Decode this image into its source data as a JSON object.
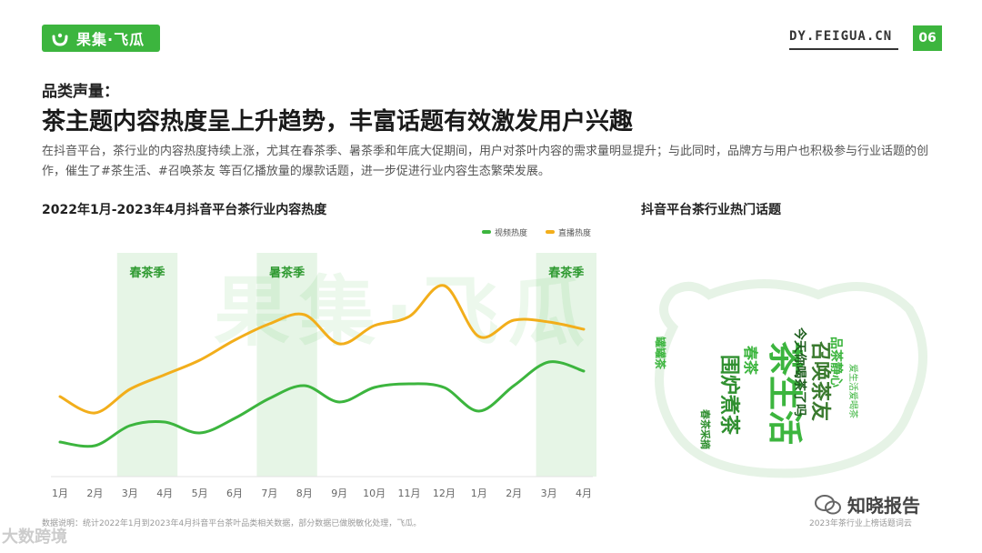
{
  "header": {
    "logo_text": "果集·飞瓜",
    "site_url": "DY.FEIGUA.CN",
    "page_number": "06"
  },
  "section_label": "品类声量：",
  "headline": "茶主题内容热度呈上升趋势，丰富话题有效激发用户兴趣",
  "description": "在抖音平台，茶行业的内容热度持续上涨，尤其在春茶季、暑茶季和年底大促期间，用户对茶叶内容的需求量明显提升；与此同时，品牌方与用户也积极参与行业话题的创作，催生了#茶生活、#召唤茶友 等百亿播放量的爆款话题，进一步促进行业内容生态繁荣发展。",
  "watermark_text": "果集·飞瓜",
  "chart_data": {
    "type": "line",
    "title": "2022年1月-2023年4月抖音平台茶行业内容热度",
    "categories": [
      "1月",
      "2月",
      "3月",
      "4月",
      "5月",
      "6月",
      "7月",
      "8月",
      "9月",
      "10月",
      "11月",
      "12月",
      "1月",
      "2月",
      "3月",
      "4月"
    ],
    "series": [
      {
        "name": "视频热度",
        "color": "#3cb53e",
        "values": [
          19,
          17,
          28,
          30,
          24,
          32,
          43,
          50,
          41,
          49,
          51,
          49,
          36,
          50,
          63,
          58
        ]
      },
      {
        "name": "直播热度",
        "color": "#f2ae1b",
        "values": [
          44,
          35,
          48,
          56,
          64,
          75,
          84,
          89,
          73,
          83,
          88,
          105,
          77,
          86,
          85,
          81
        ]
      }
    ],
    "ylim": [
      0,
      130
    ],
    "highlights": [
      {
        "label": "春茶季",
        "start_index": 2,
        "end_index": 3
      },
      {
        "label": "暑茶季",
        "start_index": 6,
        "end_index": 7
      },
      {
        "label": "春茶季",
        "start_index": 14,
        "end_index": 15
      }
    ],
    "legend_position": "top-right",
    "grid": false
  },
  "word_cloud": {
    "title": "抖音平台茶行业热门话题",
    "words": [
      {
        "text": "茶生活",
        "weight": 5
      },
      {
        "text": "召唤茶友",
        "weight": 4
      },
      {
        "text": "围炉煮茶",
        "weight": 4
      },
      {
        "text": "春茶",
        "weight": 3
      },
      {
        "text": "今天你喝茶了吗",
        "weight": 2
      },
      {
        "text": "品茶静心",
        "weight": 2
      },
      {
        "text": "爱生活爱喝茶",
        "weight": 1
      },
      {
        "text": "春茶采摘",
        "weight": 1
      },
      {
        "text": "罐罐茶",
        "weight": 1
      }
    ],
    "source": "2023年茶行业上榜话题词云"
  },
  "footnote": "数据说明：统计2022年1月到2023年4月抖音平台茶叶品类相关数据，部分数据已做脱敏化处理，飞瓜。",
  "corner_mark": "大数跨境",
  "corner_brand": "知晓报告"
}
